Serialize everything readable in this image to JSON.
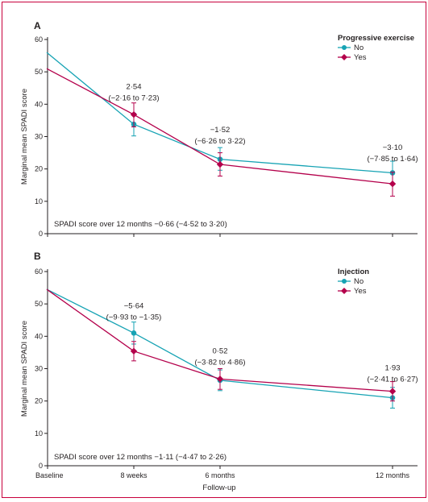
{
  "colors": {
    "border": "#c8003c",
    "no": "#16a3b4",
    "yes": "#b4004b",
    "axis": "#231f20"
  },
  "x_axis": {
    "categories": [
      "Baseline",
      "8 weeks",
      "6 months",
      "12 months"
    ],
    "label": "Follow-up"
  },
  "chart_data": [
    {
      "type": "line",
      "panel": "A",
      "ylabel": "Marginal mean SPADI score",
      "ylim": [
        0,
        60
      ],
      "yticks": [
        0,
        10,
        20,
        30,
        40,
        50,
        60
      ],
      "categories": [
        "Baseline",
        "8 weeks",
        "6 months",
        "12 months"
      ],
      "legend": {
        "title": "Progressive exercise",
        "placement": "top-right"
      },
      "series": [
        {
          "name": "No",
          "color": "#16a3b4",
          "baseline": 56,
          "values": [
            null,
            33.8,
            23.0,
            18.8
          ],
          "ci_low": [
            null,
            30.2,
            19.6,
            15.2
          ],
          "ci_high": [
            null,
            37.2,
            26.6,
            22.4
          ]
        },
        {
          "name": "Yes",
          "color": "#b4004b",
          "baseline": 51,
          "values": [
            null,
            36.8,
            21.4,
            15.4
          ],
          "ci_low": [
            null,
            33.0,
            17.8,
            11.6
          ],
          "ci_high": [
            null,
            40.4,
            25.0,
            19.0
          ]
        }
      ],
      "annotations": [
        {
          "at": "8 weeks",
          "line1": "2·54",
          "line2": "(−2·16 to 7·23)"
        },
        {
          "at": "6 months",
          "line1": "−1·52",
          "line2": "(−6·26 to 3·22)"
        },
        {
          "at": "12 months",
          "line1": "−3·10",
          "line2": "(−7·85 to 1·64)"
        }
      ],
      "summary": "SPADI score over 12 months −0·66 (−4·52 to 3·20)"
    },
    {
      "type": "line",
      "panel": "B",
      "ylabel": "Marginal mean SPADI score",
      "ylim": [
        0,
        60
      ],
      "yticks": [
        0,
        10,
        20,
        30,
        40,
        50,
        60
      ],
      "categories": [
        "Baseline",
        "8 weeks",
        "6 months",
        "12 months"
      ],
      "legend": {
        "title": "Injection",
        "placement": "top-right"
      },
      "series": [
        {
          "name": "No",
          "color": "#16a3b4",
          "baseline": 54.5,
          "values": [
            null,
            41.0,
            26.4,
            21.0
          ],
          "ci_low": [
            null,
            37.6,
            23.2,
            17.8
          ],
          "ci_high": [
            null,
            44.4,
            29.6,
            24.2
          ]
        },
        {
          "name": "Yes",
          "color": "#b4004b",
          "baseline": 54.5,
          "values": [
            null,
            35.4,
            26.8,
            23.0
          ],
          "ci_low": [
            null,
            32.4,
            23.6,
            20.0
          ],
          "ci_high": [
            null,
            38.4,
            30.0,
            26.0
          ]
        }
      ],
      "annotations": [
        {
          "at": "8 weeks",
          "line1": "−5·64",
          "line2": "(−9·93 to −1·35)"
        },
        {
          "at": "6 months",
          "line1": "0·52",
          "line2": "(−3·82 to 4·86)"
        },
        {
          "at": "12 months",
          "line1": "1·93",
          "line2": "(−2·41 to 6·27)"
        }
      ],
      "summary": "SPADI score over 12 months −1·11 (−4·47 to 2·26)"
    }
  ]
}
